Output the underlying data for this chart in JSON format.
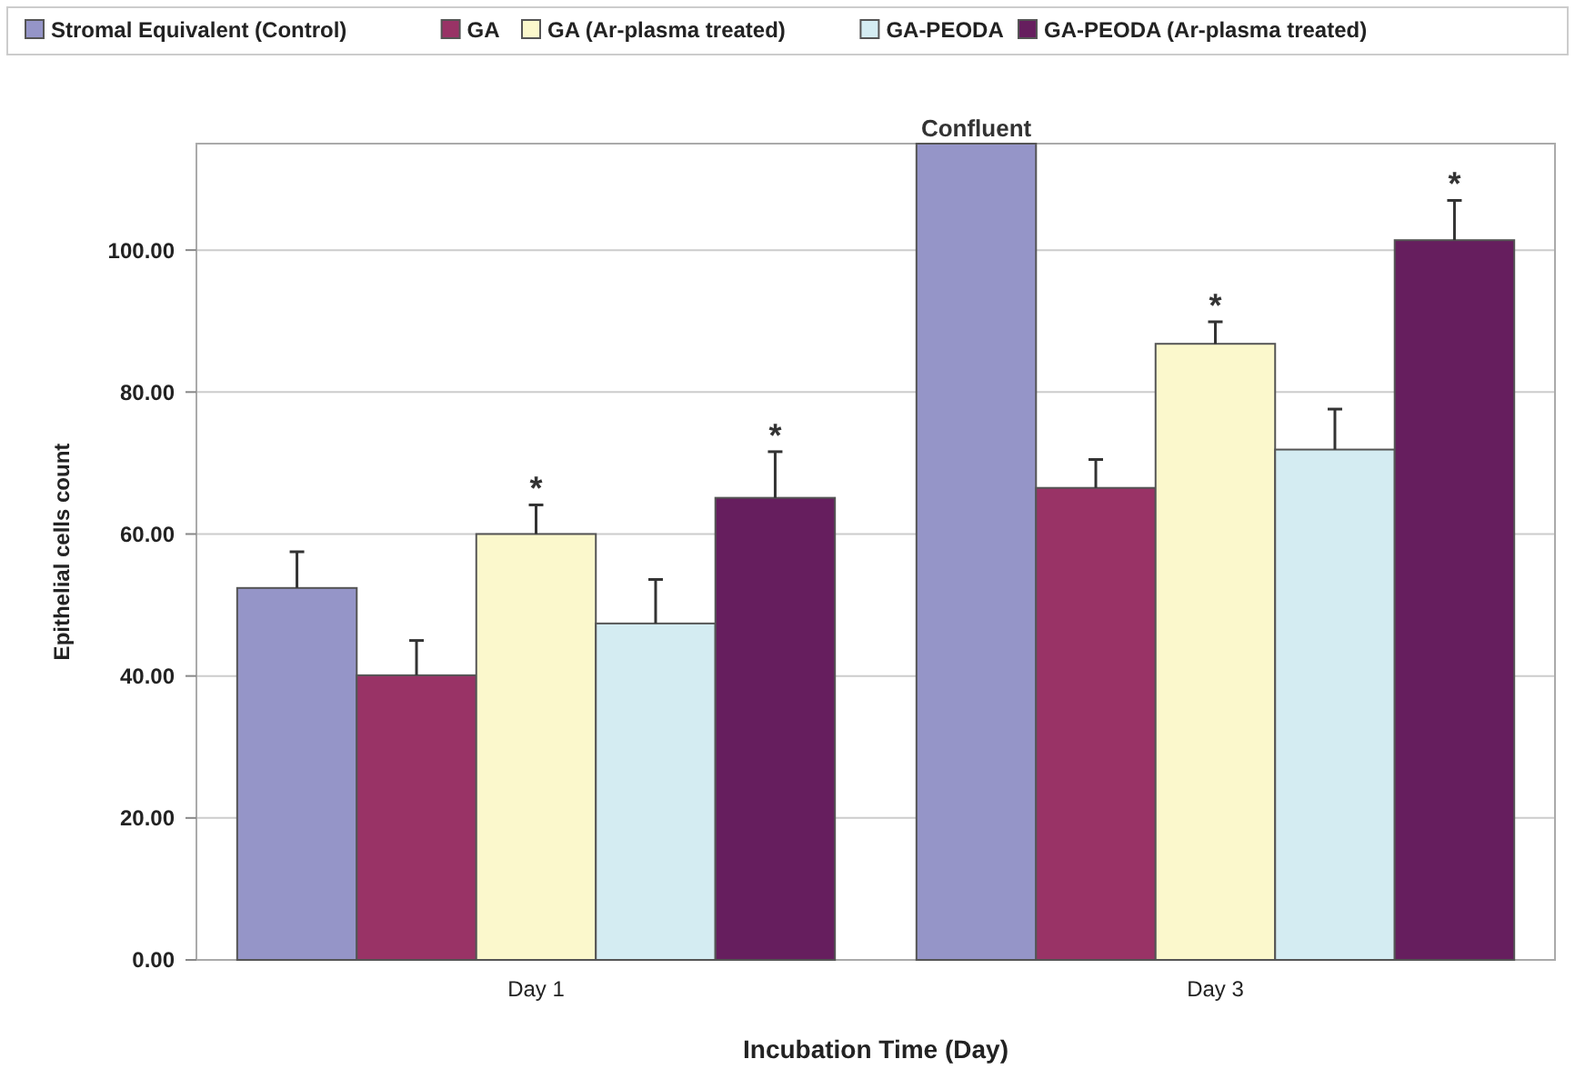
{
  "chart_data": {
    "type": "bar",
    "xlabel": "Incubation Time (Day)",
    "ylabel": "Epithelial cells count",
    "categories": [
      "Day 1",
      "Day 3"
    ],
    "series": [
      {
        "name": "Stromal Equivalent (Control)",
        "color": "#9595c8",
        "values": [
          52.4,
          115
        ],
        "errors": [
          [
            52.4,
            57.5
          ],
          null
        ],
        "value_labels": [
          null,
          "Confluent"
        ]
      },
      {
        "name": "GA",
        "color": "#993366",
        "values": [
          40.1,
          66.5
        ],
        "errors": [
          [
            40.1,
            45.0
          ],
          [
            66.5,
            70.5
          ]
        ]
      },
      {
        "name": "GA (Ar-plasma treated)",
        "color": "#fbf8cc",
        "values": [
          60.0,
          86.8
        ],
        "errors": [
          [
            60.0,
            64.1
          ],
          [
            86.8,
            89.9
          ]
        ],
        "value_labels": [
          "*",
          "*"
        ]
      },
      {
        "name": "GA-PEODA",
        "color": "#d4ecf2",
        "values": [
          47.4,
          71.9
        ],
        "errors": [
          [
            47.4,
            53.6
          ],
          [
            71.9,
            77.6
          ]
        ]
      },
      {
        "name": "GA-PEODA (Ar-plasma treated)",
        "color": "#661e5e",
        "values": [
          65.1,
          101.4
        ],
        "errors": [
          [
            65.1,
            71.6
          ],
          [
            101.4,
            107.0
          ]
        ],
        "value_labels": [
          "*",
          "*"
        ]
      }
    ],
    "ylim": [
      0,
      115
    ],
    "yticks": [
      {
        "value": 0,
        "label": "0.00"
      },
      {
        "value": 20,
        "label": "20.00"
      },
      {
        "value": 40,
        "label": "40.00"
      },
      {
        "value": 60,
        "label": "60.00"
      },
      {
        "value": 80,
        "label": "80.00"
      },
      {
        "value": 100,
        "label": "100.00"
      }
    ],
    "grid": "y",
    "legend": "top"
  }
}
